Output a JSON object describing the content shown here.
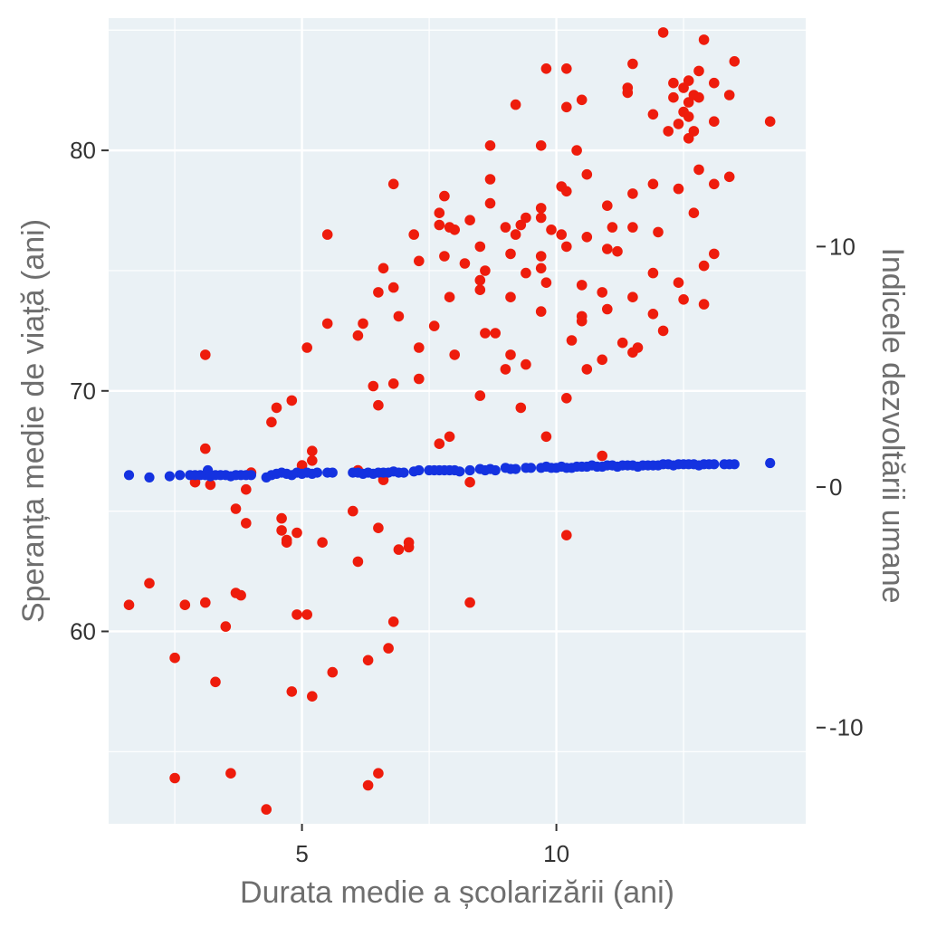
{
  "chart_data": {
    "type": "scatter",
    "title": "",
    "xlabel": "Durata medie a școlarizării (ani)",
    "ylabel": "Speranța medie de viață (ani)",
    "y2label": "Indicele dezvoltării umane",
    "xlim": [
      1.2,
      14.9
    ],
    "ylim": [
      52,
      85.5
    ],
    "y2lim": [
      -14,
      19.5
    ],
    "x_ticks": [
      5,
      10
    ],
    "y_ticks": [
      60,
      70,
      80
    ],
    "y2_ticks": [
      -10,
      0,
      10
    ],
    "y2_tick_labels": [
      "-10",
      "0",
      "10"
    ],
    "grid": true,
    "panel_background": "#eaf1f5",
    "series": [
      {
        "axis": "left",
        "color": "#ee1c0c",
        "points": [
          [
            1.6,
            61.1
          ],
          [
            2.0,
            62.0
          ],
          [
            2.5,
            58.9
          ],
          [
            2.5,
            53.9
          ],
          [
            2.7,
            61.1
          ],
          [
            2.9,
            66.2
          ],
          [
            3.1,
            67.6
          ],
          [
            3.1,
            61.2
          ],
          [
            3.1,
            71.5
          ],
          [
            3.2,
            66.1
          ],
          [
            3.3,
            57.9
          ],
          [
            3.5,
            60.2
          ],
          [
            3.6,
            54.1
          ],
          [
            3.7,
            65.1
          ],
          [
            3.7,
            61.6
          ],
          [
            3.8,
            61.5
          ],
          [
            3.9,
            64.5
          ],
          [
            3.9,
            65.9
          ],
          [
            4.0,
            66.6
          ],
          [
            4.3,
            52.6
          ],
          [
            4.4,
            68.7
          ],
          [
            4.5,
            69.3
          ],
          [
            4.6,
            64.7
          ],
          [
            4.6,
            64.2
          ],
          [
            4.7,
            63.8
          ],
          [
            4.7,
            63.7
          ],
          [
            4.8,
            57.5
          ],
          [
            4.8,
            69.6
          ],
          [
            4.9,
            60.7
          ],
          [
            4.9,
            64.1
          ],
          [
            5.0,
            66.9
          ],
          [
            5.1,
            60.7
          ],
          [
            5.1,
            71.8
          ],
          [
            5.2,
            57.3
          ],
          [
            5.2,
            67.1
          ],
          [
            5.2,
            67.5
          ],
          [
            5.4,
            63.7
          ],
          [
            5.5,
            72.8
          ],
          [
            5.5,
            76.5
          ],
          [
            5.6,
            58.3
          ],
          [
            6.0,
            65.0
          ],
          [
            6.1,
            66.7
          ],
          [
            6.1,
            62.9
          ],
          [
            6.1,
            72.3
          ],
          [
            6.2,
            72.8
          ],
          [
            6.3,
            53.6
          ],
          [
            6.3,
            58.8
          ],
          [
            6.4,
            70.2
          ],
          [
            6.5,
            54.1
          ],
          [
            6.5,
            64.3
          ],
          [
            6.5,
            69.4
          ],
          [
            6.5,
            74.1
          ],
          [
            6.6,
            66.3
          ],
          [
            6.6,
            75.1
          ],
          [
            6.7,
            59.3
          ],
          [
            6.8,
            70.3
          ],
          [
            6.8,
            60.4
          ],
          [
            6.8,
            74.3
          ],
          [
            6.8,
            78.6
          ],
          [
            6.9,
            63.4
          ],
          [
            6.9,
            73.1
          ],
          [
            7.1,
            63.5
          ],
          [
            7.1,
            63.7
          ],
          [
            7.2,
            76.5
          ],
          [
            7.3,
            70.5
          ],
          [
            7.3,
            71.8
          ],
          [
            7.3,
            75.4
          ],
          [
            7.6,
            72.7
          ],
          [
            7.7,
            67.8
          ],
          [
            7.7,
            77.4
          ],
          [
            7.7,
            76.9
          ],
          [
            7.8,
            75.6
          ],
          [
            7.8,
            78.1
          ],
          [
            7.9,
            76.8
          ],
          [
            7.9,
            68.1
          ],
          [
            7.9,
            73.9
          ],
          [
            8.0,
            71.5
          ],
          [
            8.0,
            76.7
          ],
          [
            8.2,
            75.3
          ],
          [
            8.3,
            61.2
          ],
          [
            8.3,
            66.2
          ],
          [
            8.3,
            77.1
          ],
          [
            8.5,
            69.8
          ],
          [
            8.5,
            74.2
          ],
          [
            8.5,
            74.6
          ],
          [
            8.5,
            76.0
          ],
          [
            8.6,
            72.4
          ],
          [
            8.6,
            75.0
          ],
          [
            8.7,
            77.8
          ],
          [
            8.7,
            78.8
          ],
          [
            8.7,
            80.2
          ],
          [
            8.8,
            72.4
          ],
          [
            9.0,
            70.9
          ],
          [
            9.0,
            76.8
          ],
          [
            9.1,
            71.5
          ],
          [
            9.1,
            73.9
          ],
          [
            9.1,
            75.7
          ],
          [
            9.2,
            81.9
          ],
          [
            9.2,
            76.5
          ],
          [
            9.3,
            69.3
          ],
          [
            9.3,
            76.9
          ],
          [
            9.4,
            77.2
          ],
          [
            9.4,
            74.9
          ],
          [
            9.4,
            71.1
          ],
          [
            9.7,
            73.3
          ],
          [
            9.7,
            75.1
          ],
          [
            9.7,
            77.2
          ],
          [
            9.7,
            75.6
          ],
          [
            9.7,
            77.6
          ],
          [
            9.7,
            80.2
          ],
          [
            9.8,
            74.5
          ],
          [
            9.8,
            68.1
          ],
          [
            9.8,
            83.4
          ],
          [
            9.9,
            76.7
          ],
          [
            10.1,
            76.5
          ],
          [
            10.1,
            78.5
          ],
          [
            10.2,
            64.0
          ],
          [
            10.2,
            69.7
          ],
          [
            10.2,
            76.0
          ],
          [
            10.2,
            78.3
          ],
          [
            10.2,
            81.8
          ],
          [
            10.2,
            83.4
          ],
          [
            10.3,
            72.1
          ],
          [
            10.4,
            80.0
          ],
          [
            10.5,
            74.4
          ],
          [
            10.5,
            73.1
          ],
          [
            10.5,
            82.1
          ],
          [
            10.5,
            72.9
          ],
          [
            10.6,
            76.4
          ],
          [
            10.6,
            79.0
          ],
          [
            10.6,
            70.9
          ],
          [
            10.9,
            71.3
          ],
          [
            10.9,
            74.1
          ],
          [
            10.9,
            67.3
          ],
          [
            11.0,
            73.4
          ],
          [
            11.0,
            77.7
          ],
          [
            11.0,
            75.9
          ],
          [
            11.1,
            76.8
          ],
          [
            11.2,
            75.8
          ],
          [
            11.3,
            72.0
          ],
          [
            11.4,
            82.6
          ],
          [
            11.4,
            82.4
          ],
          [
            11.5,
            71.6
          ],
          [
            11.5,
            73.9
          ],
          [
            11.5,
            78.2
          ],
          [
            11.5,
            76.8
          ],
          [
            11.5,
            83.6
          ],
          [
            11.6,
            71.8
          ],
          [
            11.9,
            81.5
          ],
          [
            11.9,
            73.2
          ],
          [
            11.9,
            78.6
          ],
          [
            11.9,
            74.9
          ],
          [
            12.0,
            76.6
          ],
          [
            12.1,
            72.5
          ],
          [
            12.1,
            84.9
          ],
          [
            12.2,
            80.8
          ],
          [
            12.3,
            82.2
          ],
          [
            12.3,
            82.8
          ],
          [
            12.4,
            81.1
          ],
          [
            12.4,
            78.4
          ],
          [
            12.4,
            74.5
          ],
          [
            12.5,
            82.6
          ],
          [
            12.5,
            81.6
          ],
          [
            12.5,
            73.8
          ],
          [
            12.6,
            82.0
          ],
          [
            12.6,
            82.9
          ],
          [
            12.6,
            81.4
          ],
          [
            12.6,
            80.5
          ],
          [
            12.7,
            82.3
          ],
          [
            12.7,
            80.8
          ],
          [
            12.7,
            77.4
          ],
          [
            12.8,
            83.3
          ],
          [
            12.8,
            82.2
          ],
          [
            12.8,
            79.2
          ],
          [
            12.9,
            84.6
          ],
          [
            12.9,
            75.2
          ],
          [
            12.9,
            73.6
          ],
          [
            13.1,
            81.2
          ],
          [
            13.1,
            82.8
          ],
          [
            13.1,
            75.7
          ],
          [
            13.1,
            78.6
          ],
          [
            13.4,
            82.3
          ],
          [
            13.4,
            78.9
          ],
          [
            13.5,
            83.7
          ],
          [
            14.2,
            81.2
          ]
        ]
      },
      {
        "axis": "right",
        "color": "#1432e0",
        "points": [
          [
            1.6,
            0.5
          ],
          [
            2.0,
            0.4
          ],
          [
            2.4,
            0.45
          ],
          [
            2.6,
            0.5
          ],
          [
            2.8,
            0.5
          ],
          [
            2.9,
            0.5
          ],
          [
            3.0,
            0.5
          ],
          [
            3.1,
            0.5
          ],
          [
            3.15,
            0.7
          ],
          [
            3.2,
            0.45
          ],
          [
            3.3,
            0.5
          ],
          [
            3.4,
            0.5
          ],
          [
            3.5,
            0.5
          ],
          [
            3.6,
            0.45
          ],
          [
            3.7,
            0.5
          ],
          [
            3.8,
            0.5
          ],
          [
            3.9,
            0.5
          ],
          [
            4.0,
            0.5
          ],
          [
            4.3,
            0.4
          ],
          [
            4.4,
            0.5
          ],
          [
            4.5,
            0.55
          ],
          [
            4.6,
            0.6
          ],
          [
            4.7,
            0.55
          ],
          [
            4.8,
            0.5
          ],
          [
            4.9,
            0.6
          ],
          [
            5.0,
            0.55
          ],
          [
            5.1,
            0.6
          ],
          [
            5.2,
            0.55
          ],
          [
            5.3,
            0.6
          ],
          [
            5.5,
            0.6
          ],
          [
            5.6,
            0.6
          ],
          [
            6.0,
            0.6
          ],
          [
            6.1,
            0.6
          ],
          [
            6.2,
            0.55
          ],
          [
            6.3,
            0.6
          ],
          [
            6.4,
            0.55
          ],
          [
            6.5,
            0.6
          ],
          [
            6.6,
            0.6
          ],
          [
            6.7,
            0.6
          ],
          [
            6.8,
            0.65
          ],
          [
            6.9,
            0.6
          ],
          [
            7.0,
            0.6
          ],
          [
            7.2,
            0.65
          ],
          [
            7.3,
            0.7
          ],
          [
            7.5,
            0.7
          ],
          [
            7.6,
            0.7
          ],
          [
            7.7,
            0.7
          ],
          [
            7.8,
            0.7
          ],
          [
            7.9,
            0.7
          ],
          [
            8.0,
            0.7
          ],
          [
            8.1,
            0.65
          ],
          [
            8.3,
            0.7
          ],
          [
            8.5,
            0.75
          ],
          [
            8.6,
            0.7
          ],
          [
            8.7,
            0.75
          ],
          [
            8.8,
            0.7
          ],
          [
            9.0,
            0.8
          ],
          [
            9.1,
            0.75
          ],
          [
            9.2,
            0.75
          ],
          [
            9.4,
            0.8
          ],
          [
            9.5,
            0.8
          ],
          [
            9.7,
            0.8
          ],
          [
            9.8,
            0.85
          ],
          [
            9.9,
            0.8
          ],
          [
            10.0,
            0.8
          ],
          [
            10.1,
            0.85
          ],
          [
            10.2,
            0.8
          ],
          [
            10.3,
            0.8
          ],
          [
            10.4,
            0.85
          ],
          [
            10.5,
            0.85
          ],
          [
            10.6,
            0.85
          ],
          [
            10.7,
            0.9
          ],
          [
            10.8,
            0.85
          ],
          [
            10.9,
            0.85
          ],
          [
            11.0,
            0.9
          ],
          [
            11.1,
            0.9
          ],
          [
            11.2,
            0.85
          ],
          [
            11.3,
            0.9
          ],
          [
            11.4,
            0.9
          ],
          [
            11.5,
            0.9
          ],
          [
            11.6,
            0.85
          ],
          [
            11.7,
            0.9
          ],
          [
            11.8,
            0.9
          ],
          [
            11.9,
            0.9
          ],
          [
            12.0,
            0.9
          ],
          [
            12.1,
            0.95
          ],
          [
            12.2,
            0.95
          ],
          [
            12.3,
            0.9
          ],
          [
            12.4,
            0.95
          ],
          [
            12.5,
            0.95
          ],
          [
            12.6,
            0.95
          ],
          [
            12.7,
            0.95
          ],
          [
            12.8,
            0.9
          ],
          [
            12.9,
            0.95
          ],
          [
            13.0,
            0.95
          ],
          [
            13.1,
            0.95
          ],
          [
            13.3,
            0.95
          ],
          [
            13.4,
            0.95
          ],
          [
            13.5,
            0.95
          ],
          [
            14.2,
            1.0
          ]
        ]
      }
    ]
  }
}
